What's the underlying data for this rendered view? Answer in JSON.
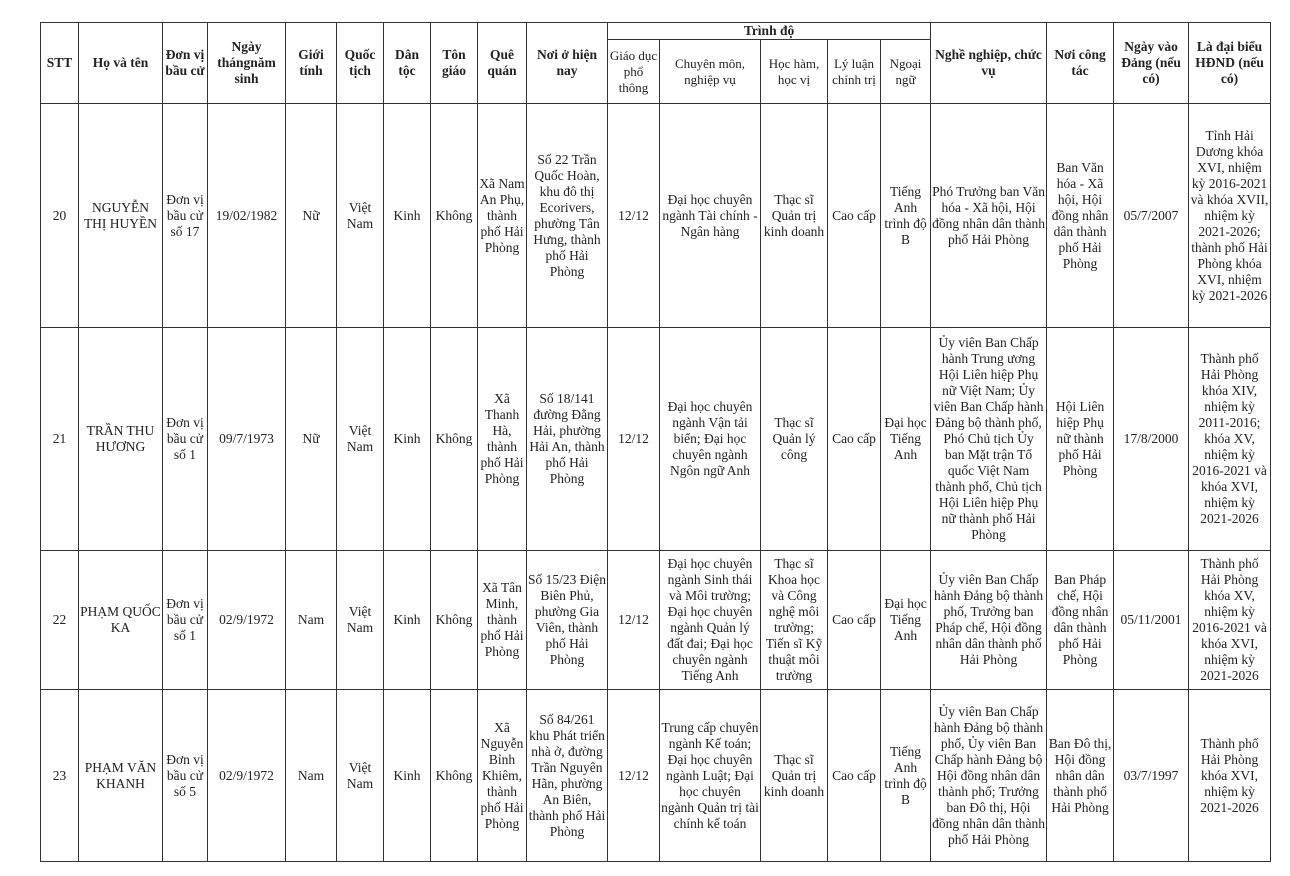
{
  "headers": {
    "stt": "STT",
    "name": "Họ và tên",
    "unit": "Đơn vị bầu cử",
    "dob": "Ngày thángnăm sinh",
    "gender": "Giới tính",
    "nationality": "Quốc tịch",
    "ethnicity": "Dân tộc",
    "religion": "Tôn giáo",
    "hometown": "Quê quán",
    "residence": "Nơi ở hiện nay",
    "education_group": "Trình độ",
    "general_edu": "Giáo dục phổ thông",
    "specialty": "Chuyên môn, nghiệp vụ",
    "degree": "Học hàm, học vị",
    "political": "Lý luận chính trị",
    "language": "Ngoại ngữ",
    "occupation": "Nghề nghiệp, chức vụ",
    "workplace": "Nơi công tác",
    "party_date": "Ngày vào Đảng (nếu có)",
    "council": "Là đại biểu HĐND (nếu có)"
  },
  "rows": [
    {
      "stt": "20",
      "name": "NGUYỄN THỊ HUYỀN",
      "unit": "Đơn vị bầu cử số 17",
      "dob": "19/02/1982",
      "gender": "Nữ",
      "nationality": "Việt Nam",
      "ethnicity": "Kinh",
      "religion": "Không",
      "hometown": "Xã Nam An Phụ, thành phố Hải Phòng",
      "residence": "Số 22 Trần Quốc Hoàn, khu đô thị Ecorivers, phường Tân Hưng, thành phố Hải Phòng",
      "general_edu": "12/12",
      "specialty": "Đại học chuyên ngành Tài chính - Ngân hàng",
      "degree": "Thạc sĩ Quản trị kinh doanh",
      "political": "Cao cấp",
      "language": "Tiếng Anh trình độ B",
      "occupation": "Phó Trưởng ban Văn hóa - Xã hội, Hội đồng nhân dân thành phố Hải Phòng",
      "workplace": "Ban Văn hóa - Xã hội, Hội đồng nhân dân thành phố Hải Phòng",
      "party_date": "05/7/2007",
      "council": "Tỉnh Hải Dương khóa XVI, nhiệm kỳ 2016-2021 và khóa XVII, nhiệm kỳ 2021-2026; thành phố Hải Phòng khóa XVI, nhiệm kỳ 2021-2026"
    },
    {
      "stt": "21",
      "name": "TRẦN THU HƯƠNG",
      "unit": "Đơn vị bầu cử số 1",
      "dob": "09/7/1973",
      "gender": "Nữ",
      "nationality": "Việt Nam",
      "ethnicity": "Kinh",
      "religion": "Không",
      "hometown": "Xã Thanh Hà, thành phố Hải Phòng",
      "residence": "Số 18/141 đường Đằng Hải, phường Hải An, thành phố Hải Phòng",
      "general_edu": "12/12",
      "specialty": "Đại học chuyên ngành Vận tải biển; Đại học chuyên ngành Ngôn ngữ Anh",
      "degree": "Thạc sĩ Quản lý công",
      "political": "Cao cấp",
      "language": "Đại học Tiếng Anh",
      "occupation": "Ủy viên Ban Chấp hành Trung ương Hội Liên hiệp Phụ nữ Việt Nam; Ủy viên Ban Chấp hành Đảng bộ thành phố, Phó Chủ tịch Ủy ban Mặt trận Tổ quốc Việt Nam thành phố, Chủ tịch Hội Liên hiệp Phụ nữ thành phố Hải Phòng",
      "workplace": "Hội Liên hiệp Phụ nữ thành phố Hải Phòng",
      "party_date": "17/8/2000",
      "council": "Thành phố Hải Phòng khóa XIV, nhiệm kỳ 2011-2016; khóa XV, nhiệm kỳ 2016-2021 và khóa XVI, nhiệm kỳ 2021-2026"
    },
    {
      "stt": "22",
      "name": "PHẠM QUỐC KA",
      "unit": "Đơn vị bầu cử số 1",
      "dob": "02/9/1972",
      "gender": "Nam",
      "nationality": "Việt Nam",
      "ethnicity": "Kinh",
      "religion": "Không",
      "hometown": "Xã Tân Minh, thành phố Hải Phòng",
      "residence": "Số 15/23 Điện Biên Phủ, phường Gia Viên, thành phố Hải Phòng",
      "general_edu": "12/12",
      "specialty": "Đại học chuyên ngành Sinh thái và Môi trường; Đại học chuyên ngành Quản lý đất đai; Đại học chuyên ngành Tiếng Anh",
      "degree": "Thạc sĩ Khoa học và Công nghệ môi trường; Tiến sĩ Kỹ thuật môi trường",
      "political": "Cao cấp",
      "language": "Đại học Tiếng Anh",
      "occupation": "Ủy viên Ban Chấp hành Đảng bộ thành phố, Trưởng ban Pháp chế, Hội đồng nhân dân thành phố Hải Phòng",
      "workplace": "Ban Pháp chế, Hội đồng nhân dân thành phố Hải Phòng",
      "party_date": "05/11/2001",
      "council": "Thành phố Hải Phòng khóa XV, nhiệm kỳ 2016-2021 và khóa XVI, nhiệm kỳ 2021-2026"
    },
    {
      "stt": "23",
      "name": "PHẠM VĂN KHANH",
      "unit": "Đơn vị bầu cử số 5",
      "dob": "02/9/1972",
      "gender": "Nam",
      "nationality": "Việt Nam",
      "ethnicity": "Kinh",
      "religion": "Không",
      "hometown": "Xã Nguyễn Bỉnh Khiêm, thành phố Hải Phòng",
      "residence": "Số 84/261 khu Phát triển nhà ở, đường Trần Nguyên Hãn, phường An Biên, thành phố Hải Phòng",
      "general_edu": "12/12",
      "specialty": "Trung cấp chuyên ngành Kế toán; Đại học chuyên ngành Luật; Đại học chuyên ngành Quản trị tài chính kế toán",
      "degree": "Thạc sĩ Quản trị kinh doanh",
      "political": "Cao cấp",
      "language": "Tiếng Anh trình độ B",
      "occupation": "Ủy viên Ban Chấp hành Đảng bộ thành phố, Ủy viên Ban Chấp hành Đảng bộ Hội đồng nhân dân thành phố; Trưởng ban Đô thị, Hội đồng nhân dân thành phố Hải Phòng",
      "workplace": "Ban Đô thị, Hội đồng nhân dân thành phố Hải Phòng",
      "party_date": "03/7/1997",
      "council": "Thành phố Hải Phòng khóa XVI, nhiệm kỳ 2021-2026"
    }
  ]
}
